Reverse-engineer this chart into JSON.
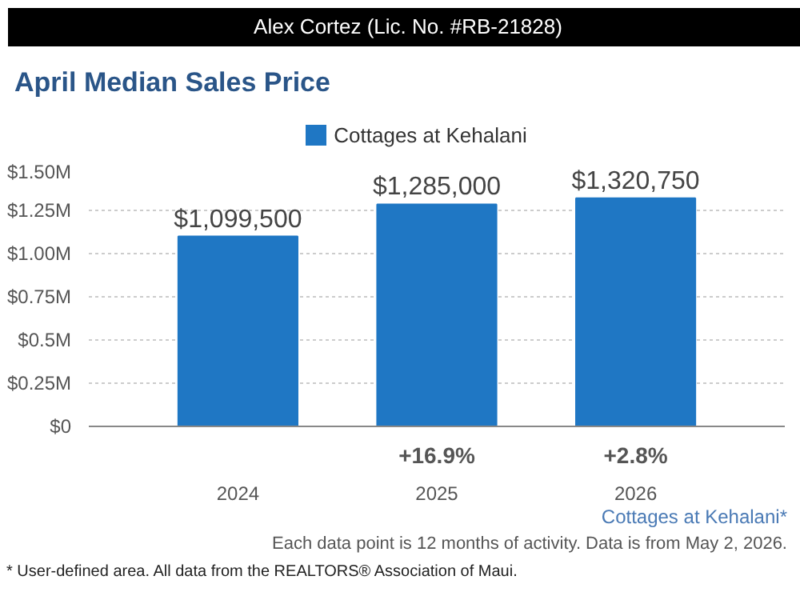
{
  "chart_data": {
    "type": "bar",
    "title": "April Median Sales Price",
    "subtitle": "Alex Cortez (Lic. No. #RB-21828)",
    "categories": [
      "2024",
      "2025",
      "2026"
    ],
    "series": [
      {
        "name": "Cottages at Kehalani",
        "color": "#1f77c4",
        "values": [
          1099500,
          1285000,
          1320750
        ],
        "value_labels": [
          "$1,099,500",
          "$1,285,000",
          "$1,320,750"
        ]
      }
    ],
    "ylim": [
      0,
      1500000
    ],
    "yticks": [
      {
        "value": 0,
        "label": "$0"
      },
      {
        "value": 250000,
        "label": "$0.25M"
      },
      {
        "value": 500000,
        "label": "$0.5M"
      },
      {
        "value": 750000,
        "label": "$0.75M"
      },
      {
        "value": 1000000,
        "label": "$1.00M"
      },
      {
        "value": 1250000,
        "label": "$1.25M"
      },
      {
        "value": 1500000,
        "label": "$1.50M"
      }
    ],
    "grid": "y",
    "legend": "top",
    "annotations": [
      "+16.9%",
      "+2.8%",
      "Cottages at Kehalani*",
      "Each data point is 12 months of activity. Data is from May 2, 2026.",
      "* User-defined area. All data from the REALTORS® Association of Maui."
    ]
  }
}
